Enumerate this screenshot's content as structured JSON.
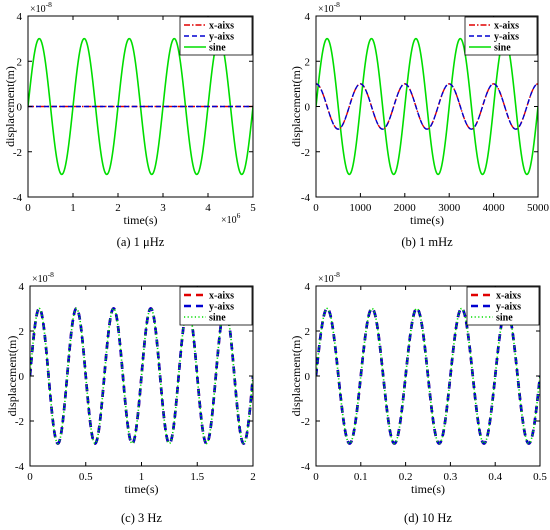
{
  "chart_data": [
    {
      "type": "line",
      "caption": "(a) 1 μHz",
      "xlabel": "time(s)",
      "ylabel": "displacement(m)",
      "xlim": [
        0,
        5000000
      ],
      "ylim": [
        -4e-08,
        4e-08
      ],
      "x_ticks": [
        0,
        1000000,
        2000000,
        3000000,
        4000000,
        5000000
      ],
      "x_tick_labels": [
        "0",
        "1",
        "2",
        "3",
        "4",
        "5"
      ],
      "x_multiplier": {
        "base": "×10",
        "exponent": "6"
      },
      "y_ticks": [
        -4e-08,
        -2e-08,
        0,
        2e-08,
        4e-08
      ],
      "y_tick_labels": [
        "-4",
        "-2",
        "0",
        "2",
        "4"
      ],
      "y_multiplier": {
        "base": "×10",
        "exponent": "-8"
      },
      "legend_position": "top-right",
      "series": [
        {
          "name": "x-aixs",
          "color": "#e00000",
          "dash": "dash-dot",
          "amplitude": 0,
          "period": 1000000,
          "phase": 0
        },
        {
          "name": "y-aixs",
          "color": "#0000d0",
          "dash": "dashed",
          "amplitude": 0,
          "period": 1000000,
          "phase": 0
        },
        {
          "name": "sine",
          "color": "#00dd00",
          "dash": "solid",
          "amplitude": 3e-08,
          "period": 1000000,
          "phase": 0
        }
      ]
    },
    {
      "type": "line",
      "caption": "(b) 1 mHz",
      "xlabel": "time(s)",
      "ylabel": "displacement(m)",
      "xlim": [
        0,
        5000
      ],
      "ylim": [
        -4e-08,
        4e-08
      ],
      "x_ticks": [
        0,
        1000,
        2000,
        3000,
        4000,
        5000
      ],
      "x_tick_labels": [
        "0",
        "1000",
        "2000",
        "3000",
        "4000",
        "5000"
      ],
      "y_ticks": [
        -4e-08,
        -2e-08,
        0,
        2e-08,
        4e-08
      ],
      "y_tick_labels": [
        "-4",
        "-2",
        "0",
        "2",
        "4"
      ],
      "y_multiplier": {
        "base": "×10",
        "exponent": "-8"
      },
      "legend_position": "top-right",
      "series": [
        {
          "name": "x-aixs",
          "color": "#e00000",
          "dash": "dash-dot",
          "amplitude": 1e-08,
          "period": 1000,
          "phase": 90
        },
        {
          "name": "y-aixs",
          "color": "#0000d0",
          "dash": "dashed",
          "amplitude": 1e-08,
          "period": 1000,
          "phase": 90
        },
        {
          "name": "sine",
          "color": "#00dd00",
          "dash": "solid",
          "amplitude": 3e-08,
          "period": 1000,
          "phase": 0
        }
      ]
    },
    {
      "type": "line",
      "caption": "(c) 3 Hz",
      "xlabel": "time(s)",
      "ylabel": "displacement(m)",
      "xlim": [
        0,
        2
      ],
      "ylim": [
        -4e-08,
        4e-08
      ],
      "x_ticks": [
        0,
        0.5,
        1,
        1.5,
        2
      ],
      "x_tick_labels": [
        "0",
        "0.5",
        "1",
        "1.5",
        "2"
      ],
      "y_ticks": [
        -4e-08,
        -2e-08,
        0,
        2e-08,
        4e-08
      ],
      "y_tick_labels": [
        "-4",
        "-2",
        "0",
        "2",
        "4"
      ],
      "y_multiplier": {
        "base": "×10",
        "exponent": "-8"
      },
      "legend_position": "top-right",
      "series": [
        {
          "name": "x-aixs",
          "color": "#e00000",
          "dash": "thick-dashed",
          "amplitude": 3e-08,
          "period": 0.3333,
          "phase": 0
        },
        {
          "name": "y-aixs",
          "color": "#0000d0",
          "dash": "thick-dashed",
          "amplitude": 3e-08,
          "period": 0.3333,
          "phase": 0
        },
        {
          "name": "sine",
          "color": "#00dd00",
          "dash": "dotted",
          "amplitude": 3e-08,
          "period": 0.3333,
          "phase": 0
        }
      ]
    },
    {
      "type": "line",
      "caption": "(d) 10 Hz",
      "xlabel": "time(s)",
      "ylabel": "displacement(m)",
      "xlim": [
        0,
        0.5
      ],
      "ylim": [
        -4e-08,
        4e-08
      ],
      "x_ticks": [
        0,
        0.1,
        0.2,
        0.3,
        0.4,
        0.5
      ],
      "x_tick_labels": [
        "0",
        "0.1",
        "0.2",
        "0.3",
        "0.4",
        "0.5"
      ],
      "y_ticks": [
        -4e-08,
        -2e-08,
        0,
        2e-08,
        4e-08
      ],
      "y_tick_labels": [
        "-4",
        "-2",
        "0",
        "2",
        "4"
      ],
      "y_multiplier": {
        "base": "×10",
        "exponent": "-8"
      },
      "legend_position": "top-right",
      "series": [
        {
          "name": "x-aixs",
          "color": "#e00000",
          "dash": "thick-dashed",
          "amplitude": 3e-08,
          "period": 0.1,
          "phase": 0
        },
        {
          "name": "y-aixs",
          "color": "#0000d0",
          "dash": "thick-dashed",
          "amplitude": 3e-08,
          "period": 0.1,
          "phase": 0
        },
        {
          "name": "sine",
          "color": "#00dd00",
          "dash": "dotted",
          "amplitude": 3e-08,
          "period": 0.1,
          "phase": 0
        }
      ]
    }
  ]
}
